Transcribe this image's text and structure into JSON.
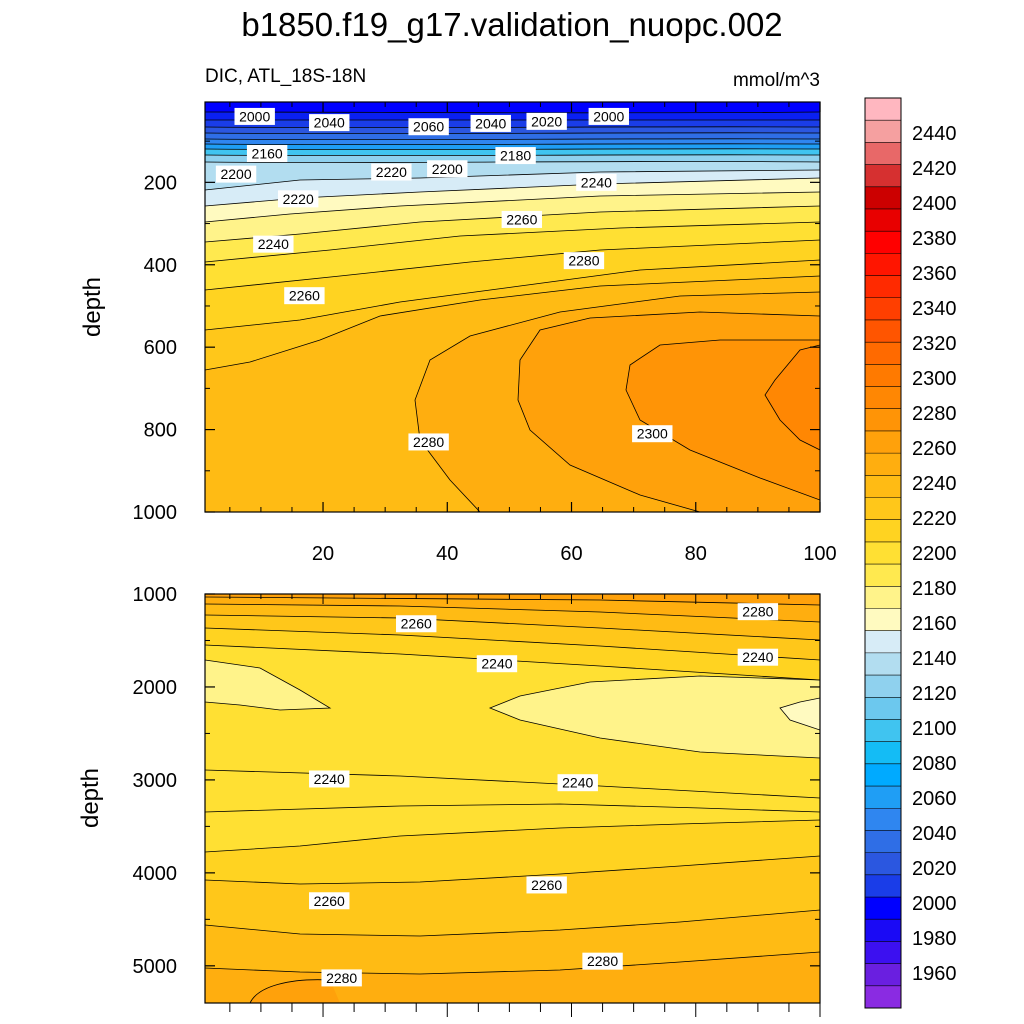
{
  "figure": {
    "title": "b1850.f19_g17.validation_nuopc.002",
    "left_subtitle": "DIC, ATL_18S-18N",
    "right_subtitle": "mmol/m^3"
  },
  "colors": {
    "bins": [
      "#8a2be2",
      "#6a1fe0",
      "#3c10f0",
      "#1a0af5",
      "#0000ff",
      "#1a3de8",
      "#2b57e0",
      "#2f6ee6",
      "#2f86f0",
      "#1f9ef5",
      "#00aaff",
      "#14bcf5",
      "#40c4f0",
      "#6cc8ee",
      "#8fd1ee",
      "#b2ddf0",
      "#d7ecf7",
      "#fffac0",
      "#fff38a",
      "#ffe94f",
      "#ffe033",
      "#ffd321",
      "#ffc71a",
      "#ffbb14",
      "#ffae0f",
      "#ffa10b",
      "#ff9406",
      "#ff8703",
      "#ff7a00",
      "#ff6a00",
      "#ff5500",
      "#ff3f00",
      "#ff2a00",
      "#ff1500",
      "#ff0000",
      "#e80000",
      "#cc0000",
      "#d63030",
      "#e86868",
      "#f5a0a0",
      "#ffb7c0"
    ],
    "contour_line": "#000000"
  },
  "colorbar": {
    "labels": [
      "2440",
      "2420",
      "2400",
      "2380",
      "2360",
      "2340",
      "2320",
      "2300",
      "2280",
      "2260",
      "2240",
      "2220",
      "2200",
      "2180",
      "2160",
      "2140",
      "2120",
      "2100",
      "2080",
      "2060",
      "2040",
      "2020",
      "2000",
      "1980",
      "1960"
    ]
  },
  "chart_data": [
    {
      "type": "contour",
      "panel": "upper",
      "title": "b1850.f19_g17.validation_nuopc.002",
      "subtitle_left": "DIC, ATL_18S-18N",
      "subtitle_right": "mmol/m^3",
      "ylabel": "depth",
      "x_ticks": [
        "20",
        "40",
        "60",
        "80",
        "100"
      ],
      "y_ticks": [
        "200",
        "400",
        "600",
        "800",
        "1000"
      ],
      "xlim": [
        1,
        100
      ],
      "ylim": [
        1000,
        5
      ],
      "levels": [
        1960,
        2450,
        10
      ],
      "contour_labels": [
        {
          "text": "2000",
          "x": 9,
          "y": 40
        },
        {
          "text": "2040",
          "x": 21,
          "y": 55
        },
        {
          "text": "2060",
          "x": 37,
          "y": 65
        },
        {
          "text": "2040",
          "x": 47,
          "y": 57
        },
        {
          "text": "2020",
          "x": 56,
          "y": 52
        },
        {
          "text": "2000",
          "x": 66,
          "y": 40
        },
        {
          "text": "2160",
          "x": 11,
          "y": 130
        },
        {
          "text": "2180",
          "x": 51,
          "y": 135
        },
        {
          "text": "2200",
          "x": 6,
          "y": 180
        },
        {
          "text": "2200",
          "x": 40,
          "y": 167
        },
        {
          "text": "2220",
          "x": 31,
          "y": 175
        },
        {
          "text": "2220",
          "x": 16,
          "y": 240
        },
        {
          "text": "2240",
          "x": 64,
          "y": 200
        },
        {
          "text": "2240",
          "x": 12,
          "y": 350
        },
        {
          "text": "2260",
          "x": 52,
          "y": 290
        },
        {
          "text": "2280",
          "x": 62,
          "y": 390
        },
        {
          "text": "2260",
          "x": 17,
          "y": 475
        },
        {
          "text": "2300",
          "x": 73,
          "y": 810
        },
        {
          "text": "2280",
          "x": 37,
          "y": 830
        }
      ]
    },
    {
      "type": "contour",
      "panel": "lower",
      "ylabel": "depth",
      "y_ticks": [
        "1000",
        "2000",
        "3000",
        "4000",
        "5000"
      ],
      "xlim": [
        1,
        100
      ],
      "ylim": [
        5400,
        1000
      ],
      "levels": [
        2200,
        2300,
        10
      ],
      "contour_labels": [
        {
          "text": "2260",
          "x": 35,
          "y": 1320
        },
        {
          "text": "2280",
          "x": 90,
          "y": 1190
        },
        {
          "text": "2240",
          "x": 48,
          "y": 1750
        },
        {
          "text": "2240",
          "x": 90,
          "y": 1680
        },
        {
          "text": "2240",
          "x": 21,
          "y": 2990
        },
        {
          "text": "2240",
          "x": 61,
          "y": 3030
        },
        {
          "text": "2260",
          "x": 21,
          "y": 4300
        },
        {
          "text": "2260",
          "x": 56,
          "y": 4130
        },
        {
          "text": "2280",
          "x": 23,
          "y": 5130
        },
        {
          "text": "2280",
          "x": 65,
          "y": 4950
        }
      ]
    }
  ]
}
